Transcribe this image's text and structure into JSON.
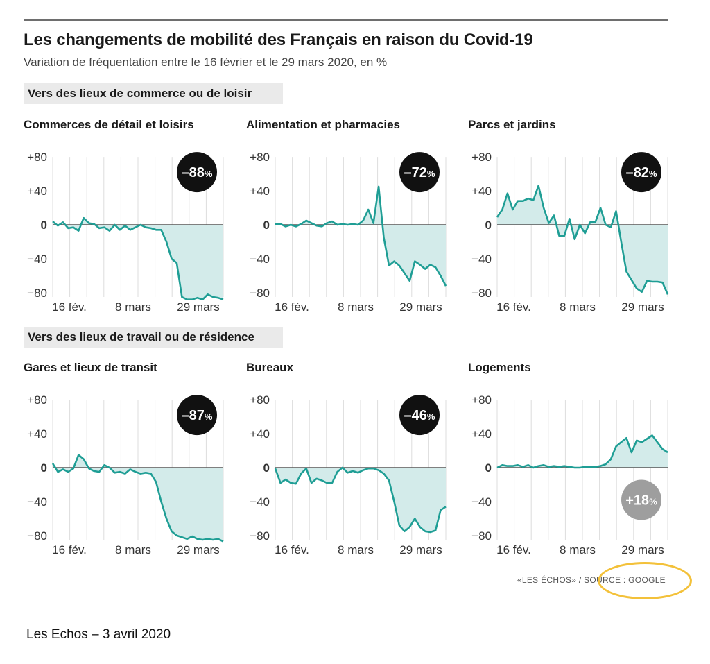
{
  "header": {
    "title": "Les changements de mobilité des Français en raison du Covid-19",
    "subtitle": "Variation de fréquentation entre le 16 février et le 29 mars 2020, en %"
  },
  "sections": [
    {
      "label": "Vers des lieux de commerce ou de loisir"
    },
    {
      "label": "Vers des lieux de travail ou de résidence"
    }
  ],
  "colors": {
    "line": "#1f9e95",
    "fill": "#d3ebea",
    "badge": "#111111",
    "badge_positive": "#9e9e9e",
    "zero_line": "#555555",
    "grid": "#dddddd"
  },
  "chart_data": [
    {
      "type": "area",
      "title": "Commerces de détail et loisirs",
      "badge": {
        "text": "-88",
        "unit": "%"
      },
      "x_labels": [
        "16 fév.",
        "8 mars",
        "29 mars"
      ],
      "y_ticks": [
        "+80",
        "+40",
        "0",
        "-40",
        "-80"
      ],
      "ylim": [
        -85,
        85
      ],
      "values": [
        4,
        -1,
        3,
        -4,
        -3,
        -7,
        8,
        2,
        1,
        -4,
        -3,
        -7,
        0,
        -6,
        -1,
        -6,
        -3,
        0,
        -3,
        -4,
        -6,
        -6,
        -20,
        -40,
        -45,
        -85,
        -88,
        -88,
        -86,
        -88,
        -82,
        -85,
        -86,
        -88
      ]
    },
    {
      "type": "area",
      "title": "Alimentation et pharmacies",
      "badge": {
        "text": "-72",
        "unit": "%"
      },
      "x_labels": [
        "16 fév.",
        "8 mars",
        "29 mars"
      ],
      "y_ticks": [
        "+80",
        "+40",
        "0",
        "-40",
        "-80"
      ],
      "ylim": [
        -85,
        85
      ],
      "values": [
        1,
        1,
        -2,
        0,
        -2,
        1,
        5,
        2,
        -1,
        -2,
        2,
        4,
        0,
        1,
        0,
        1,
        0,
        5,
        18,
        2,
        45,
        -15,
        -48,
        -43,
        -48,
        -57,
        -66,
        -43,
        -47,
        -52,
        -47,
        -50,
        -60,
        -72
      ]
    },
    {
      "type": "area",
      "title": "Parcs et jardins",
      "badge": {
        "text": "-82",
        "unit": "%"
      },
      "x_labels": [
        "16 fév.",
        "8 mars",
        "29 mars"
      ],
      "y_ticks": [
        "+80",
        "+40",
        "0",
        "-40",
        "-80"
      ],
      "ylim": [
        -85,
        85
      ],
      "values": [
        9,
        18,
        37,
        18,
        28,
        28,
        31,
        29,
        46,
        20,
        2,
        11,
        -13,
        -13,
        7,
        -17,
        0,
        -10,
        3,
        3,
        20,
        0,
        -3,
        16,
        -20,
        -55,
        -65,
        -75,
        -79,
        -66,
        -67,
        -67,
        -68,
        -82
      ]
    },
    {
      "type": "area",
      "title": "Gares et lieux de transit",
      "badge": {
        "text": "-87",
        "unit": "%"
      },
      "x_labels": [
        "16 fév.",
        "8 mars",
        "29 mars"
      ],
      "y_ticks": [
        "+80",
        "+40",
        "0",
        "-40",
        "-80"
      ],
      "ylim": [
        -85,
        85
      ],
      "values": [
        5,
        -5,
        -2,
        -5,
        -1,
        15,
        10,
        -1,
        -4,
        -5,
        3,
        0,
        -6,
        -5,
        -7,
        -2,
        -5,
        -7,
        -6,
        -7,
        -17,
        -40,
        -60,
        -75,
        -80,
        -82,
        -84,
        -81,
        -84,
        -85,
        -84,
        -85,
        -84,
        -87
      ]
    },
    {
      "type": "area",
      "title": "Bureaux",
      "badge": {
        "text": "-46",
        "unit": "%"
      },
      "x_labels": [
        "16 fév.",
        "8 mars",
        "29 mars"
      ],
      "y_ticks": [
        "+80",
        "+40",
        "0",
        "-40",
        "-80"
      ],
      "ylim": [
        -85,
        85
      ],
      "values": [
        -1,
        -18,
        -14,
        -18,
        -19,
        -7,
        -1,
        -18,
        -13,
        -15,
        -18,
        -18,
        -5,
        0,
        -6,
        -4,
        -6,
        -3,
        -1,
        -1,
        -3,
        -7,
        -15,
        -40,
        -68,
        -75,
        -70,
        -60,
        -70,
        -75,
        -76,
        -74,
        -50,
        -46
      ]
    },
    {
      "type": "area",
      "title": "Logements",
      "badge": {
        "text": "+18",
        "unit": "%"
      },
      "x_labels": [
        "16 fév.",
        "8 mars",
        "29 mars"
      ],
      "y_ticks": [
        "+80",
        "+40",
        "0",
        "-40",
        "-80"
      ],
      "ylim": [
        -85,
        85
      ],
      "values": [
        0,
        3,
        2,
        2,
        3,
        1,
        3,
        0,
        2,
        3,
        1,
        2,
        1,
        2,
        1,
        0,
        0,
        1,
        1,
        1,
        2,
        4,
        10,
        25,
        30,
        35,
        18,
        32,
        30,
        34,
        38,
        30,
        22,
        18
      ]
    }
  ],
  "footer": {
    "source": "«LES ÉCHOS» / SOURCE : GOOGLE",
    "caption": "Les Echos – 3 avril 2020"
  }
}
